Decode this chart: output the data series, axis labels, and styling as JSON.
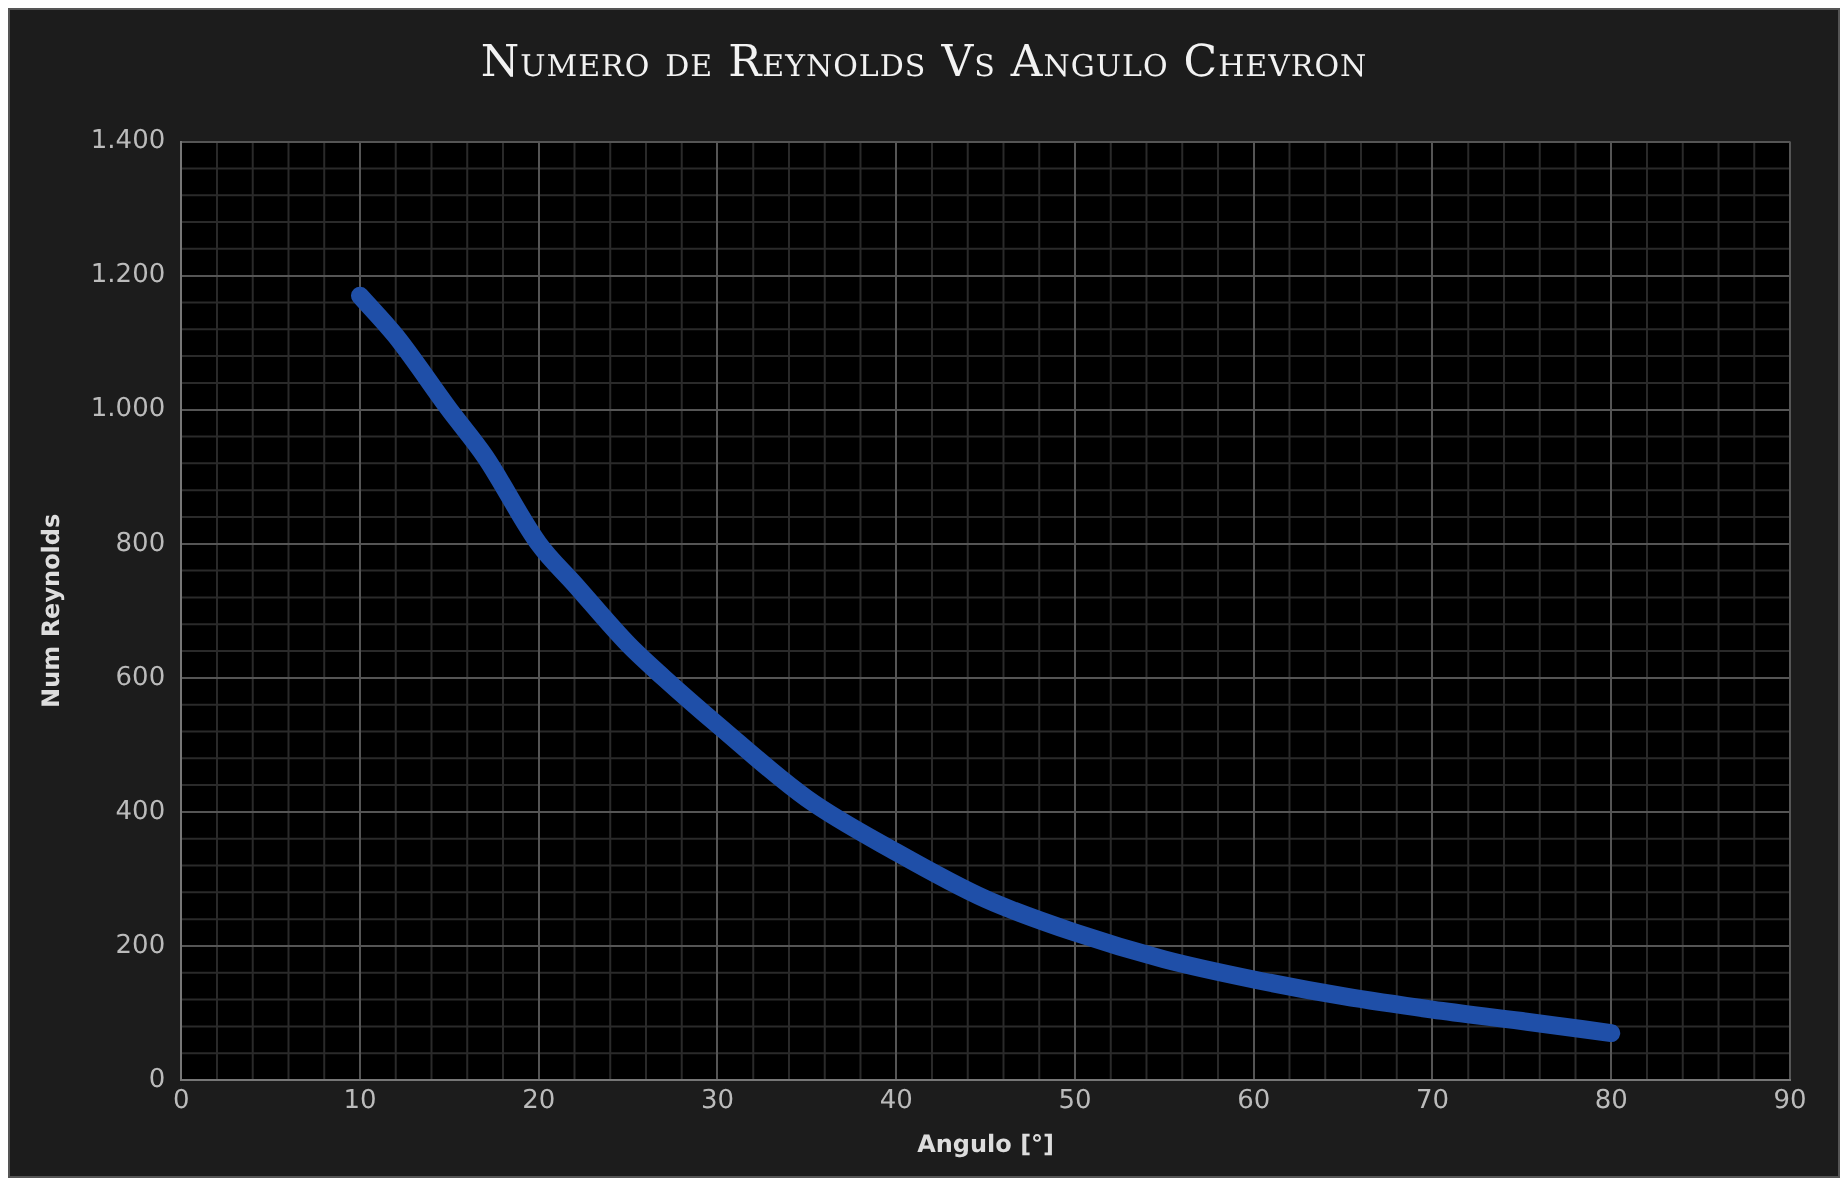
{
  "chart_data": {
    "type": "line",
    "title": "Numero de Reynolds Vs Angulo Chevron",
    "xlabel": "Angulo [°]",
    "ylabel": "Num Reynolds",
    "x": [
      10,
      12,
      15,
      17,
      20,
      22,
      25,
      27,
      30,
      35,
      40,
      45,
      50,
      55,
      60,
      65,
      70,
      75,
      80
    ],
    "series": [
      {
        "color": "#1f4fa8",
        "values": [
          1170,
          1110,
          1000,
          930,
          800,
          740,
          650,
          600,
          530,
          420,
          340,
          270,
          220,
          180,
          150,
          125,
          105,
          88,
          70
        ]
      }
    ],
    "xlim": [
      0,
      90
    ],
    "xticks": [
      0,
      10,
      20,
      30,
      40,
      50,
      60,
      70,
      80,
      90
    ],
    "ylim": [
      0,
      1400
    ],
    "yticks": [
      {
        "value": 0,
        "label": "0"
      },
      {
        "value": 200,
        "label": "200"
      },
      {
        "value": 400,
        "label": "400"
      },
      {
        "value": 600,
        "label": "600"
      },
      {
        "value": 800,
        "label": "800"
      },
      {
        "value": 1000,
        "label": "1.000"
      },
      {
        "value": 1200,
        "label": "1.200"
      },
      {
        "value": 1400,
        "label": "1.400"
      }
    ],
    "grid": true,
    "legend": false,
    "marker": "none",
    "line_style": "solid"
  }
}
